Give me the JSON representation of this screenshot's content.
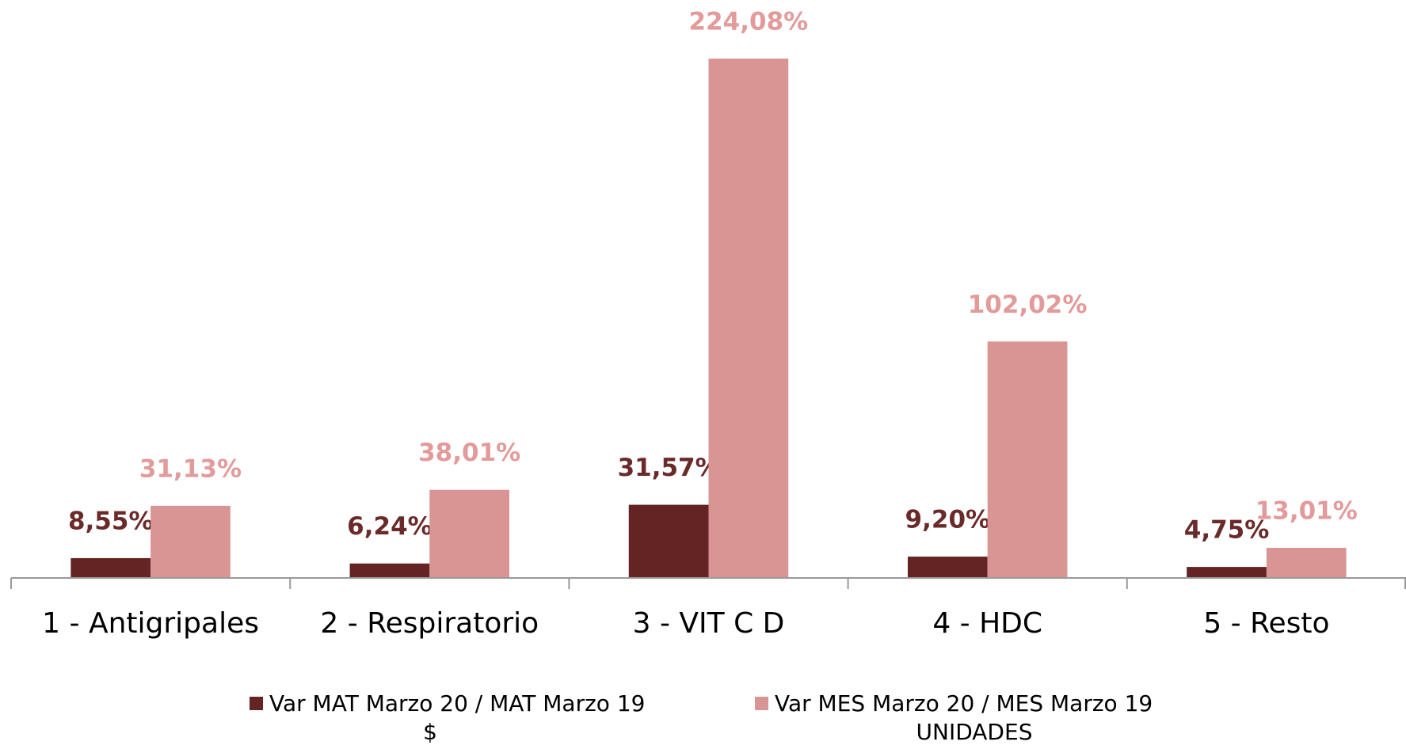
{
  "chart_data": {
    "type": "bar",
    "categories": [
      "1 - Antigripales",
      "2 - Respiratorio",
      "3 - VIT C D",
      "4 - HDC",
      "5 - Resto"
    ],
    "series": [
      {
        "name": "Var MAT Marzo 20 / MAT Marzo 19",
        "sublabel": "$",
        "color": "#632423",
        "label_color": "#6b2a2a",
        "values": [
          8.55,
          6.24,
          31.57,
          9.2,
          4.75
        ],
        "value_labels": [
          "8,55%",
          "6,24%",
          "31,57%",
          "9,20%",
          "4,75%"
        ]
      },
      {
        "name": "Var MES Marzo 20 / MES Marzo 19",
        "sublabel": "UNIDADES",
        "color": "#d99594",
        "label_color": "#e39a9a",
        "values": [
          31.13,
          38.01,
          224.08,
          102.02,
          13.01
        ],
        "value_labels": [
          "31,13%",
          "38,01%",
          "224,08%",
          "102,02%",
          "13,01%"
        ]
      }
    ],
    "legend": "bottom"
  }
}
